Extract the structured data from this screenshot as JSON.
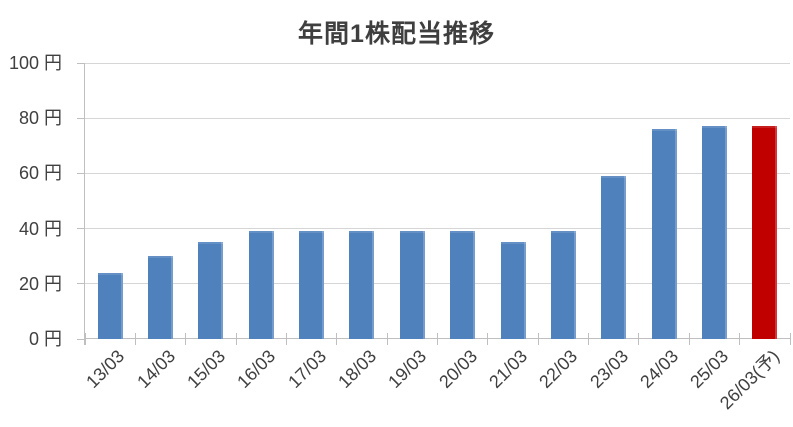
{
  "chart_data": {
    "type": "bar",
    "title": "年間1株配当推移",
    "unit": "円",
    "categories": [
      "13/03",
      "14/03",
      "15/03",
      "16/03",
      "17/03",
      "18/03",
      "19/03",
      "20/03",
      "21/03",
      "22/03",
      "23/03",
      "24/03",
      "25/03",
      "26/03(予)"
    ],
    "values": [
      24,
      30,
      35,
      39,
      39,
      39,
      39,
      39,
      35,
      39,
      59,
      76,
      77,
      77
    ],
    "xlabel": "",
    "ylabel": "円",
    "ylim": [
      0,
      100
    ],
    "y_tick_step": 20,
    "y_tick_labels": [
      "0 円",
      "20 円",
      "40 円",
      "60 円",
      "80 円",
      "100 円"
    ],
    "grid": true,
    "legend": false,
    "forecast_index": 13
  },
  "colors": {
    "bar": "#4f81bd",
    "forecast_bar": "#c00000",
    "gridline": "#d6d6d6",
    "axis": "#bfbfbf",
    "text": "#404040"
  }
}
